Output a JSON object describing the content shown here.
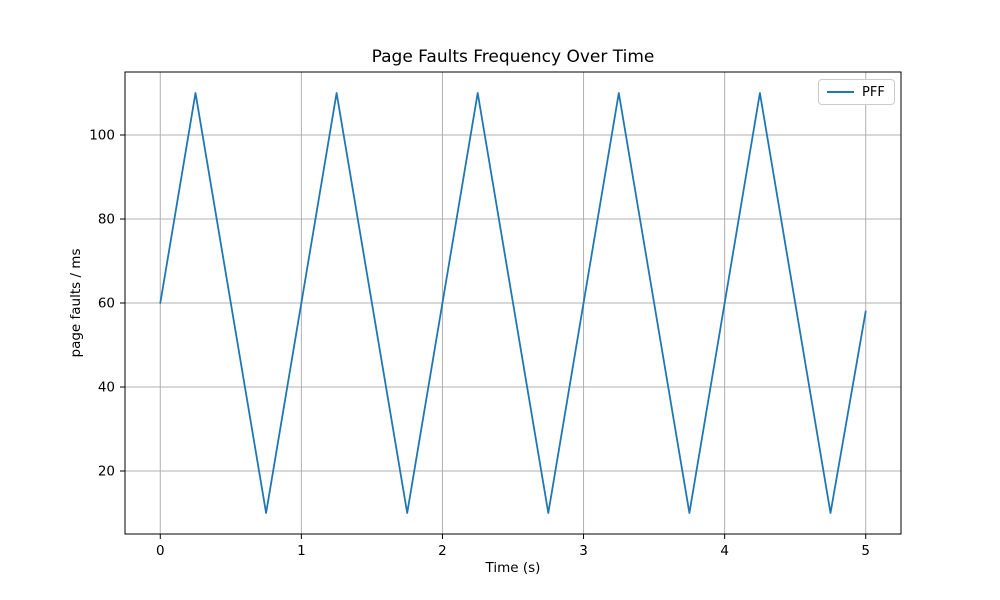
{
  "chart_data": {
    "type": "line",
    "title": "Page Faults Frequency Over Time",
    "xlabel": "Time (s)",
    "ylabel": "page faults / ms",
    "xlim": [
      -0.25,
      5.25
    ],
    "ylim": [
      5,
      115
    ],
    "xticks": [
      0,
      1,
      2,
      3,
      4,
      5
    ],
    "yticks": [
      20,
      40,
      60,
      80,
      100
    ],
    "grid": true,
    "grid_color": "#b0b0b0",
    "spine_color": "#000000",
    "legend_position": "upper right",
    "series": [
      {
        "name": "PFF",
        "color": "#1f77b4",
        "points": [
          [
            0.0,
            60
          ],
          [
            0.25,
            110
          ],
          [
            0.75,
            10
          ],
          [
            1.25,
            110
          ],
          [
            1.75,
            10
          ],
          [
            2.25,
            110
          ],
          [
            2.75,
            10
          ],
          [
            3.25,
            110
          ],
          [
            3.75,
            10
          ],
          [
            4.25,
            110
          ],
          [
            4.75,
            10
          ],
          [
            5.0,
            58
          ]
        ]
      }
    ]
  }
}
